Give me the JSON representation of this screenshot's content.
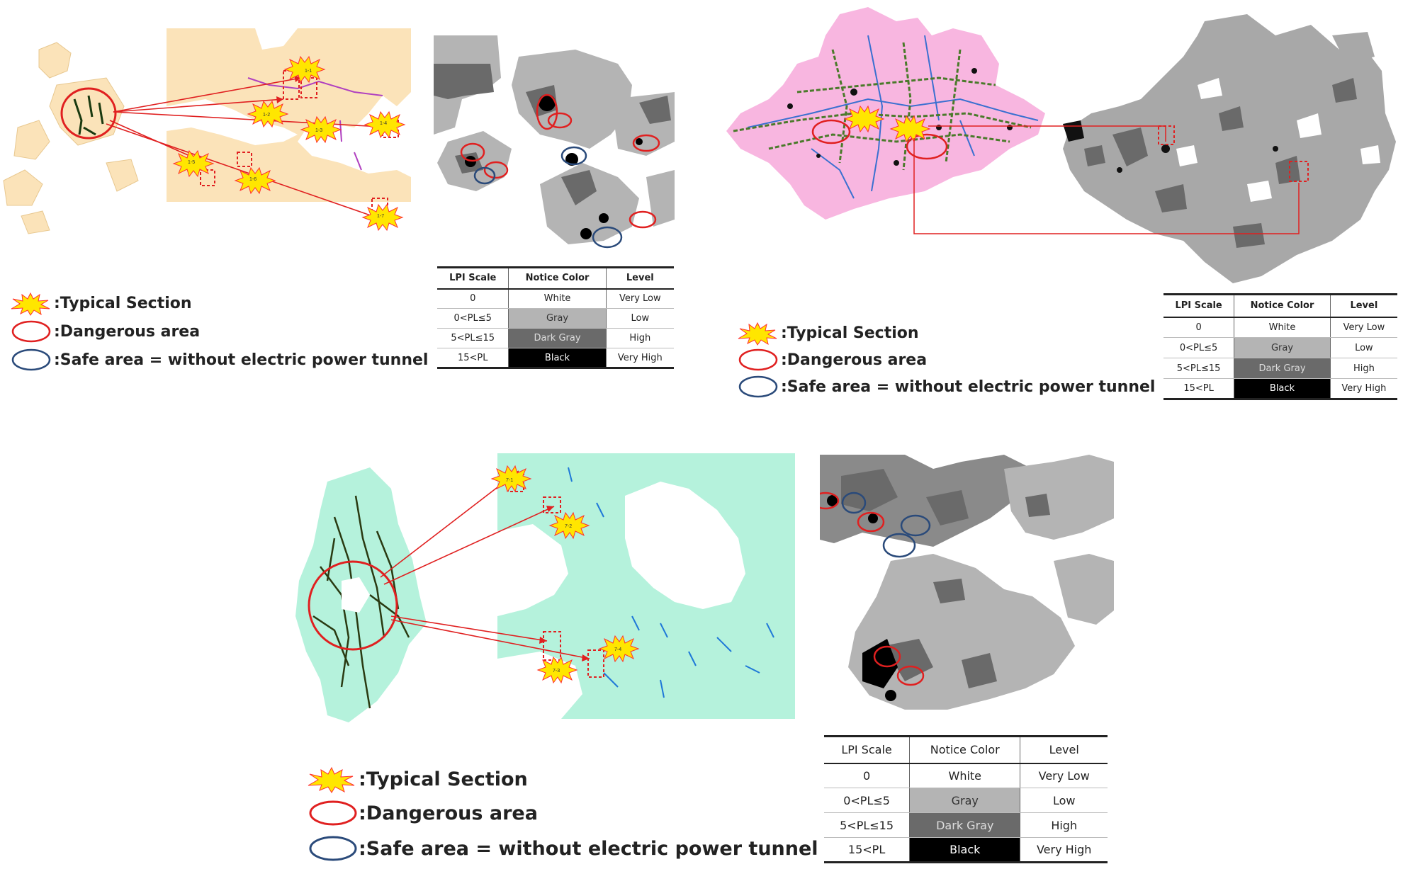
{
  "legend": {
    "typical": ":Typical Section",
    "dangerous": ":Dangerous area",
    "safe": ":Safe area = without electric power tunnel"
  },
  "lpi_table": {
    "headers": [
      "LPI Scale",
      "Notice Color",
      "Level"
    ],
    "rows": [
      {
        "scale": "0",
        "color": "White",
        "level": "Very Low"
      },
      {
        "scale": "0<PL≤5",
        "color": "Gray",
        "level": "Low"
      },
      {
        "scale": "5<PL≤15",
        "color": "Dark Gray",
        "level": "High"
      },
      {
        "scale": "15<PL",
        "color": "Black",
        "level": "Very High"
      }
    ]
  },
  "section_labels": {
    "p1": [
      "1-1",
      "1-2",
      "1-3",
      "1-4",
      "1-5",
      "1-6",
      "1-7"
    ],
    "p3": [
      "7-1",
      "7-2",
      "7-3",
      "7-4"
    ]
  },
  "colors": {
    "dangerous": "#e02020",
    "safe": "#2a4a7a",
    "star": "#ffe600",
    "star_outline": "#ff3030",
    "map1": "#fbe3b9",
    "map2": "#f8b6e0",
    "map3": "#b5f2dc",
    "gray": "#b4b4b4",
    "dark_gray": "#6a6a6a"
  }
}
